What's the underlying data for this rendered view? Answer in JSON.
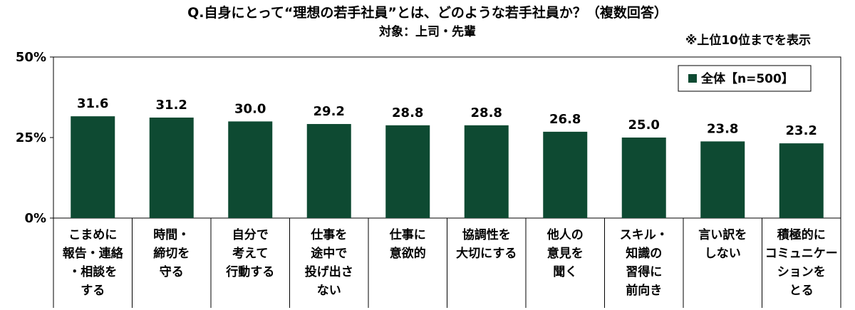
{
  "header": {
    "title": "Q.自身にとって“理想の若手社員”とは、どのような若手社員か？（複数回答）",
    "subtitle": "対象：上司・先輩",
    "note": "※上位10位までを表示"
  },
  "chart_data": {
    "type": "bar",
    "title": "Q.自身にとって“理想の若手社員”とは、どのような若手社員か？（複数回答）",
    "subtitle": "対象：上司・先輩",
    "xlabel": "",
    "ylabel": "",
    "ylim": [
      0,
      50
    ],
    "yticks": [
      "0%",
      "25%",
      "50%"
    ],
    "yticks_values": [
      0,
      25,
      50
    ],
    "grid": false,
    "legend_position": "top-right",
    "bar_color": "#0e4a32",
    "categories": [
      [
        "こまめに",
        "報告・連絡",
        "・相談を",
        "する"
      ],
      [
        "時間・",
        "締切を",
        "守る"
      ],
      [
        "自分で",
        "考えて",
        "行動する"
      ],
      [
        "仕事を",
        "途中で",
        "投げ出さ",
        "ない"
      ],
      [
        "仕事に",
        "意欲的"
      ],
      [
        "協調性を",
        "大切にする"
      ],
      [
        "他人の",
        "意見を",
        "聞く"
      ],
      [
        "スキル・",
        "知識の",
        "習得に",
        "前向き"
      ],
      [
        "言い訳を",
        "しない"
      ],
      [
        "積極的に",
        "コミュニケー",
        "ションを",
        "とる"
      ]
    ],
    "series": [
      {
        "name": "全体【n=500】",
        "values": [
          31.6,
          31.2,
          30.0,
          29.2,
          28.8,
          28.8,
          26.8,
          25.0,
          23.8,
          23.2
        ],
        "labels": [
          "31.6",
          "31.2",
          "30.0",
          "29.2",
          "28.8",
          "28.8",
          "26.8",
          "25.0",
          "23.8",
          "23.2"
        ]
      }
    ]
  }
}
